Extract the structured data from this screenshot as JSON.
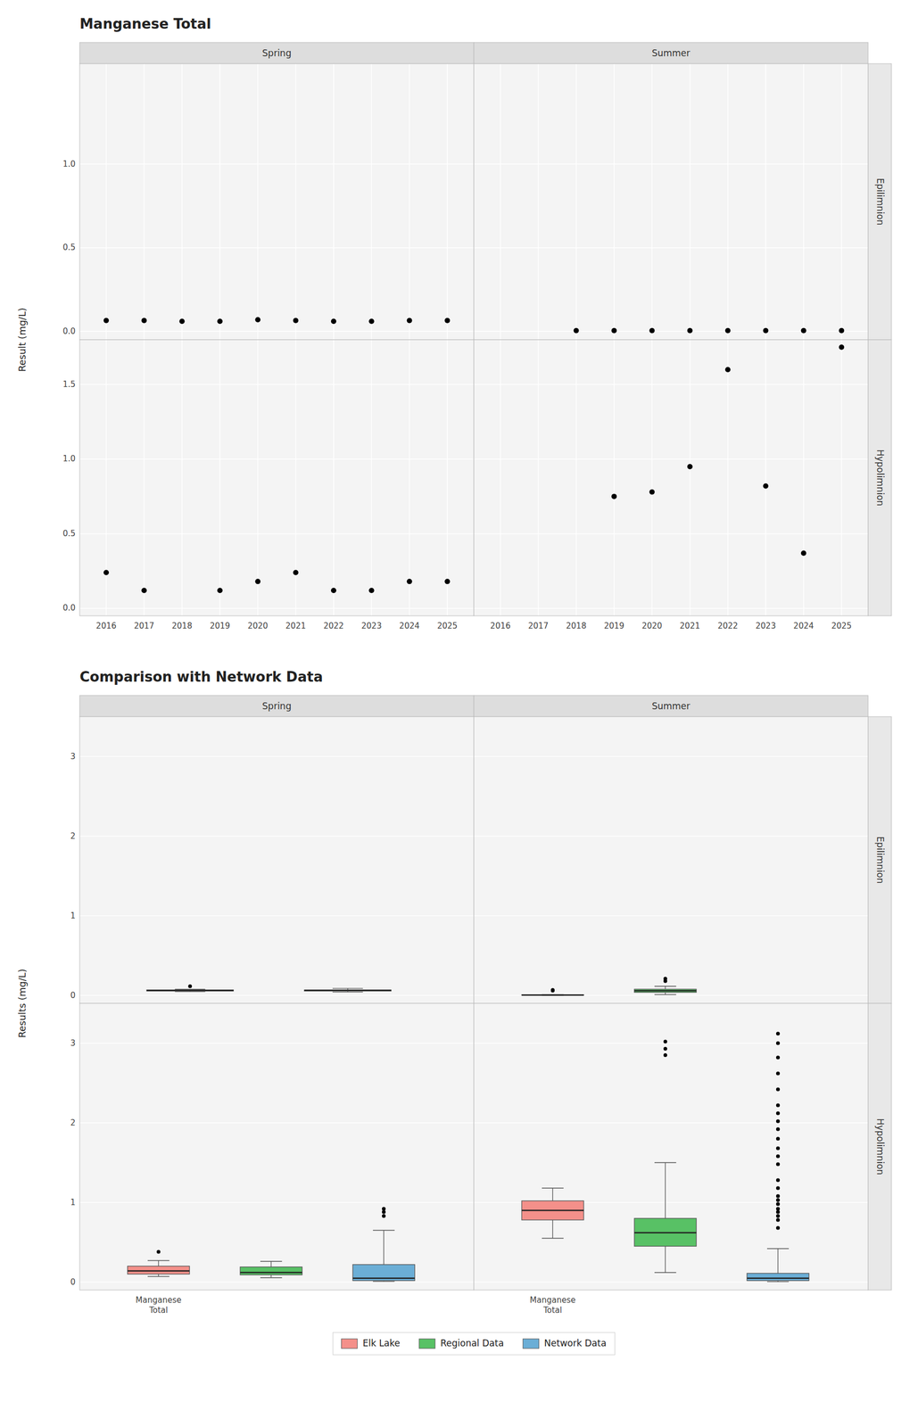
{
  "chart_data": [
    {
      "type": "scatter",
      "title": "Manganese Total",
      "y_label": "Result (mg/L)",
      "columns": [
        "Spring",
        "Summer"
      ],
      "rows": [
        "Epilimnion",
        "Hypolimnion"
      ],
      "grid": true,
      "xlim": [
        2015.3,
        2025.7
      ],
      "xticks": [
        2016,
        2017,
        2018,
        2019,
        2020,
        2021,
        2022,
        2023,
        2024,
        2025
      ],
      "panels": [
        {
          "ylim": [
            -0.05,
            1.6
          ],
          "yticks": [
            {
              "value": 0.0,
              "label": "0.0"
            },
            0.5,
            {
              "value": 1.0,
              "label": "1.0"
            }
          ],
          "series": [
            {
              "color": "black",
              "marker": "circle",
              "x": [
                2016,
                2017,
                2018,
                2019,
                2020,
                2021,
                2022,
                2023,
                2024,
                2025
              ],
              "values": [
                0.065,
                0.065,
                0.06,
                0.06,
                0.07,
                0.065,
                0.06,
                0.06,
                0.065,
                0.065
              ]
            }
          ]
        },
        {
          "ylim": [
            -0.05,
            1.6
          ],
          "yticks": [
            {
              "value": 0.0,
              "label": "0.0"
            },
            0.5,
            {
              "value": 1.0,
              "label": "1.0"
            }
          ],
          "series": [
            {
              "color": "black",
              "marker": "circle",
              "x": [
                2018,
                2019,
                2020,
                2021,
                2022,
                2023,
                2024,
                2025
              ],
              "values": [
                0.005,
                0.005,
                0.005,
                0.005,
                0.005,
                0.005,
                0.005,
                0.005
              ]
            }
          ]
        },
        {
          "ylim": [
            -0.05,
            1.8
          ],
          "yticks": [
            {
              "value": 0.0,
              "label": "0.0"
            },
            0.5,
            {
              "value": 1.0,
              "label": "1.0"
            },
            1.5
          ],
          "series": [
            {
              "color": "black",
              "marker": "circle",
              "x": [
                2016,
                2017,
                2019,
                2020,
                2021,
                2022,
                2023,
                2024,
                2025
              ],
              "values": [
                0.24,
                0.12,
                0.12,
                0.18,
                0.24,
                0.12,
                0.12,
                0.18,
                0.18
              ]
            }
          ]
        },
        {
          "ylim": [
            -0.05,
            1.8
          ],
          "yticks": [
            {
              "value": 0.0,
              "label": "0.0"
            },
            0.5,
            {
              "value": 1.0,
              "label": "1.0"
            },
            1.5
          ],
          "series": [
            {
              "color": "black",
              "marker": "circle",
              "x": [
                2019,
                2020,
                2021,
                2022,
                2023,
                2024,
                2025
              ],
              "values": [
                0.75,
                0.78,
                0.95,
                1.6,
                0.82,
                0.37,
                1.75
              ]
            }
          ]
        }
      ]
    },
    {
      "type": "box",
      "title": "Comparison with Network Data",
      "y_label": "Results (mg/L)",
      "columns": [
        "Spring",
        "Summer"
      ],
      "rows": [
        "Epilimnion",
        "Hypolimnion"
      ],
      "grid": "y",
      "legend": "bottom",
      "categories": [
        "Manganese\nTotal",
        null,
        null
      ],
      "series": [
        {
          "name": "Elk Lake",
          "color": "#F4908A"
        },
        {
          "name": "Regional Data",
          "color": "#58C165"
        },
        {
          "name": "Network Data",
          "color": "#6BAED6"
        }
      ],
      "panels": [
        {
          "ylim": [
            -0.1,
            3.5
          ],
          "yticks": [
            0,
            1,
            2,
            3
          ],
          "boxes": [
            {
              "median": 0.062,
              "q1": 0.055,
              "q3": 0.069,
              "whisker_low": 0.048,
              "whisker_high": 0.078,
              "fliers": [
                0.115
              ]
            },
            {
              "median": 0.063,
              "q1": 0.055,
              "q3": 0.068,
              "whisker_low": 0.042,
              "whisker_high": 0.088,
              "fliers": []
            }
          ]
        },
        {
          "ylim": [
            -0.1,
            3.5
          ],
          "yticks": [
            0,
            1,
            2,
            3
          ],
          "boxes": [
            {
              "median": 0.005,
              "q1": 0.002,
              "q3": 0.008,
              "whisker_low": 0.001,
              "whisker_high": 0.01,
              "fliers": [
                0.06,
                0.068
              ]
            },
            {
              "median": 0.058,
              "q1": 0.038,
              "q3": 0.078,
              "whisker_low": 0.01,
              "whisker_high": 0.115,
              "fliers": [
                0.18,
                0.21
              ]
            },
            null
          ]
        },
        {
          "ylim": [
            -0.1,
            3.5
          ],
          "yticks": [
            0,
            1,
            2,
            3
          ],
          "boxes": [
            {
              "median": 0.14,
              "q1": 0.1,
              "q3": 0.2,
              "whisker_low": 0.07,
              "whisker_high": 0.27,
              "fliers": [
                0.38
              ]
            },
            {
              "median": 0.12,
              "q1": 0.09,
              "q3": 0.19,
              "whisker_low": 0.055,
              "whisker_high": 0.26,
              "fliers": []
            },
            {
              "median": 0.048,
              "q1": 0.018,
              "q3": 0.22,
              "whisker_low": 0.008,
              "whisker_high": 0.65,
              "fliers": [
                0.83,
                0.88,
                0.92
              ]
            }
          ]
        },
        {
          "ylim": [
            -0.1,
            3.5
          ],
          "yticks": [
            0,
            1,
            2,
            3
          ],
          "boxes": [
            {
              "median": 0.9,
              "q1": 0.78,
              "q3": 1.02,
              "whisker_low": 0.55,
              "whisker_high": 1.18,
              "fliers": []
            },
            {
              "median": 0.62,
              "q1": 0.45,
              "q3": 0.8,
              "whisker_low": 0.12,
              "whisker_high": 1.5,
              "fliers": [
                2.85,
                2.93,
                3.02
              ]
            },
            {
              "median": 0.048,
              "q1": 0.018,
              "q3": 0.11,
              "whisker_low": 0.004,
              "whisker_high": 0.42,
              "fliers": [
                0.68,
                0.78,
                0.83,
                0.88,
                0.92,
                0.98,
                1.03,
                1.08,
                1.18,
                1.28,
                1.48,
                1.58,
                1.68,
                1.8,
                1.92,
                2.02,
                2.12,
                2.22,
                2.42,
                2.62,
                2.82,
                3.0,
                3.12
              ]
            }
          ]
        }
      ]
    }
  ]
}
